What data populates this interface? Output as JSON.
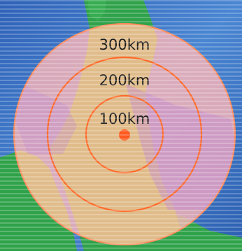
{
  "map": {
    "colors": {
      "sea": "#3a6fc4",
      "sea_light": "#4a8ad6",
      "land": "#2fa24a",
      "zone": "#ffb3b3",
      "ring": "#ff6a2a",
      "epicenter": "#ff5a1f",
      "label": "#1a1a1a"
    },
    "rings": [
      {
        "label": "300km"
      },
      {
        "label": "200km"
      },
      {
        "label": "100km"
      }
    ],
    "epicenter": {
      "label": ""
    }
  }
}
